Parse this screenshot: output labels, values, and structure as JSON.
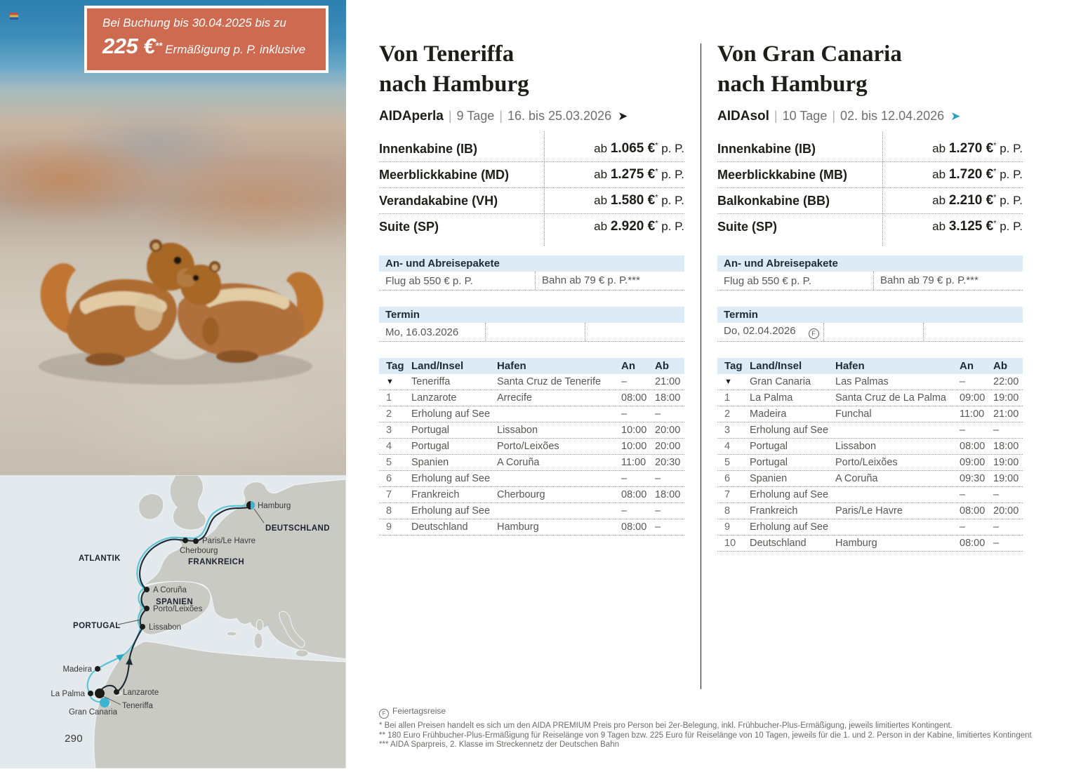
{
  "ui": {
    "pipe": "|",
    "arrow": "➤"
  },
  "promo": {
    "line1": "Bei Buchung bis 30.04.2025 bis zu",
    "amount": "225 €",
    "stars": "**",
    "line2": "Ermäßigung p. P. inklusive"
  },
  "page_number": "290",
  "map": {
    "ocean": "ATLANTIK",
    "regions": {
      "deutschland": "DEUTSCHLAND",
      "frankreich": "FRANKREICH",
      "spanien": "SPANIEN",
      "portugal": "PORTUGAL"
    },
    "ports": {
      "hamburg": "Hamburg",
      "paris_le_havre": "Paris/Le Havre",
      "cherbourg": "Cherbourg",
      "a_coruna": "A Coruña",
      "porto_leixoes": "Porto/Leixões",
      "lissabon": "Lissabon",
      "madeira": "Madeira",
      "la_palma": "La Palma",
      "lanzarote": "Lanzarote",
      "teneriffa": "Teneriffa",
      "gran_canaria": "Gran Canaria"
    },
    "route_colors": {
      "dark_route": "#1b2a33",
      "teal_route": "#58c3d6"
    }
  },
  "cruises": [
    {
      "title_line1": "Von Teneriffa",
      "title_line2": "nach Hamburg",
      "ship": "AIDAperla",
      "duration": "9 Tage",
      "dates": "16. bis 25.03.2026",
      "arrow_color": "#1d1d1b",
      "prices": [
        {
          "cabin": "Innenkabine (IB)",
          "prefix": "ab",
          "price": "1.065 €",
          "star": "*",
          "suffix": "p. P."
        },
        {
          "cabin": "Meerblickkabine (MD)",
          "prefix": "ab",
          "price": "1.275 €",
          "star": "*",
          "suffix": "p. P."
        },
        {
          "cabin": "Verandakabine (VH)",
          "prefix": "ab",
          "price": "1.580 €",
          "star": "*",
          "suffix": "p. P."
        },
        {
          "cabin": "Suite (SP)",
          "prefix": "ab",
          "price": "2.920 €",
          "star": "*",
          "suffix": "p. P."
        }
      ],
      "packages": {
        "header": "An- und Abreisepakete",
        "flight": "Flug ab 550 € p. P.",
        "rail": "Bahn ab 79 € p. P.***"
      },
      "termin": {
        "header": "Termin",
        "date": "Mo, 16.03.2026",
        "icon": ""
      },
      "table": {
        "headers": {
          "tag": "Tag",
          "land": "Land/Insel",
          "hafen": "Hafen",
          "an": "An",
          "ab": "Ab"
        },
        "rows": [
          {
            "tag": "▼",
            "land": "Teneriffa",
            "hafen": "Santa Cruz de Tenerife",
            "an": "–",
            "ab": "21:00"
          },
          {
            "tag": "1",
            "land": "Lanzarote",
            "hafen": "Arrecife",
            "an": "08:00",
            "ab": "18:00"
          },
          {
            "tag": "2",
            "land": "Erholung auf See",
            "hafen": "",
            "an": "–",
            "ab": "–"
          },
          {
            "tag": "3",
            "land": "Portugal",
            "hafen": "Lissabon",
            "an": "10:00",
            "ab": "20:00"
          },
          {
            "tag": "4",
            "land": "Portugal",
            "hafen": "Porto/Leixões",
            "an": "10:00",
            "ab": "20:00"
          },
          {
            "tag": "5",
            "land": "Spanien",
            "hafen": "A Coruña",
            "an": "11:00",
            "ab": "20:30"
          },
          {
            "tag": "6",
            "land": "Erholung auf See",
            "hafen": "",
            "an": "–",
            "ab": "–"
          },
          {
            "tag": "7",
            "land": "Frankreich",
            "hafen": "Cherbourg",
            "an": "08:00",
            "ab": "18:00"
          },
          {
            "tag": "8",
            "land": "Erholung auf See",
            "hafen": "",
            "an": "–",
            "ab": "–"
          },
          {
            "tag": "9",
            "land": "Deutschland",
            "hafen": "Hamburg",
            "an": "08:00",
            "ab": "–"
          }
        ]
      }
    },
    {
      "title_line1": "Von Gran Canaria",
      "title_line2": "nach Hamburg",
      "ship": "AIDAsol",
      "duration": "10 Tage",
      "dates": "02. bis 12.04.2026",
      "arrow_color": "#2d9fc0",
      "prices": [
        {
          "cabin": "Innenkabine (IB)",
          "prefix": "ab",
          "price": "1.270 €",
          "star": "*",
          "suffix": "p. P."
        },
        {
          "cabin": "Meerblickkabine (MB)",
          "prefix": "ab",
          "price": "1.720 €",
          "star": "*",
          "suffix": "p. P."
        },
        {
          "cabin": "Balkonkabine (BB)",
          "prefix": "ab",
          "price": "2.210 €",
          "star": "*",
          "suffix": "p. P."
        },
        {
          "cabin": "Suite (SP)",
          "prefix": "ab",
          "price": "3.125 €",
          "star": "*",
          "suffix": "p. P."
        }
      ],
      "packages": {
        "header": "An- und Abreisepakete",
        "flight": "Flug ab 550 € p. P.",
        "rail": "Bahn ab 79 € p. P.***"
      },
      "termin": {
        "header": "Termin",
        "date": "Do, 02.04.2026",
        "icon": "F"
      },
      "table": {
        "headers": {
          "tag": "Tag",
          "land": "Land/Insel",
          "hafen": "Hafen",
          "an": "An",
          "ab": "Ab"
        },
        "rows": [
          {
            "tag": "▼",
            "land": "Gran Canaria",
            "hafen": "Las Palmas",
            "an": "–",
            "ab": "22:00"
          },
          {
            "tag": "1",
            "land": "La Palma",
            "hafen": "Santa Cruz de La Palma",
            "an": "09:00",
            "ab": "19:00"
          },
          {
            "tag": "2",
            "land": "Madeira",
            "hafen": "Funchal",
            "an": "11:00",
            "ab": "21:00"
          },
          {
            "tag": "3",
            "land": "Erholung auf See",
            "hafen": "",
            "an": "–",
            "ab": "–"
          },
          {
            "tag": "4",
            "land": "Portugal",
            "hafen": "Lissabon",
            "an": "08:00",
            "ab": "18:00"
          },
          {
            "tag": "5",
            "land": "Portugal",
            "hafen": "Porto/Leixões",
            "an": "09:00",
            "ab": "19:00"
          },
          {
            "tag": "6",
            "land": "Spanien",
            "hafen": "A Coruña",
            "an": "09:30",
            "ab": "19:00"
          },
          {
            "tag": "7",
            "land": "Erholung auf See",
            "hafen": "",
            "an": "–",
            "ab": "–"
          },
          {
            "tag": "8",
            "land": "Frankreich",
            "hafen": "Paris/Le Havre",
            "an": "08:00",
            "ab": "20:00"
          },
          {
            "tag": "9",
            "land": "Erholung auf See",
            "hafen": "",
            "an": "–",
            "ab": "–"
          },
          {
            "tag": "10",
            "land": "Deutschland",
            "hafen": "Hamburg",
            "an": "08:00",
            "ab": "–"
          }
        ]
      }
    }
  ],
  "footnotes": {
    "holiday_icon": "F",
    "holiday_label": "Feiertagsreise",
    "star1": "* Bei allen Preisen handelt es sich um den AIDA PREMIUM Preis pro Person bei 2er-Belegung, inkl. Frühbucher-Plus-Ermäßigung, jeweils limitiertes Kontingent.",
    "star2": "** 180 Euro Frühbucher-Plus-Ermäßigung für Reiselänge von 9 Tagen bzw. 225 Euro für Reiselänge von 10 Tagen, jeweils für die 1. und 2. Person in der Kabine, limitiertes Kontingent",
    "star3": "*** AIDA Sparpreis, 2. Klasse im Streckennetz der Deutschen Bahn"
  }
}
